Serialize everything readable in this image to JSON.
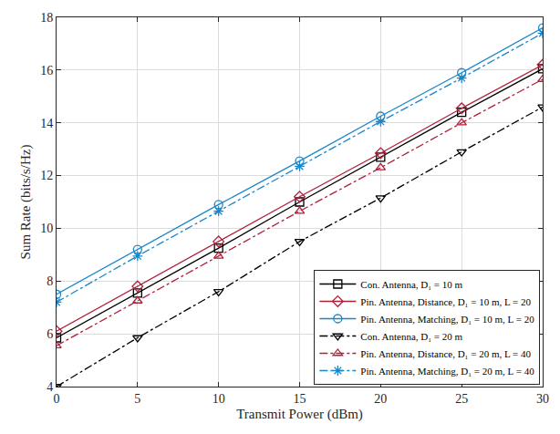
{
  "chart_data": {
    "type": "line",
    "x_label": "Transmit Power (dBm)",
    "y_label": "Sum Rate (bits/s/Hz)",
    "x": [
      0,
      5,
      10,
      15,
      20,
      25,
      30
    ],
    "xlim": [
      0,
      30
    ],
    "xticks": [
      0,
      5,
      10,
      15,
      20,
      25,
      30
    ],
    "ylim": [
      4,
      18
    ],
    "yticks": [
      4,
      6,
      8,
      10,
      12,
      14,
      16,
      18
    ],
    "grid": true,
    "legend": "bottom-right",
    "series": [
      {
        "name": "Con. Antenna, D₁ = 10 m",
        "color": "#000000",
        "marker": "square-open",
        "line_style": "solid",
        "values": [
          5.85,
          7.55,
          9.25,
          11.0,
          12.7,
          14.4,
          16.05
        ]
      },
      {
        "name": "Pin. Antenna, Distance, D₁ = 10 m, L = 20",
        "color": "#b0203a",
        "marker": "diamond-open",
        "line_style": "solid",
        "values": [
          6.1,
          7.8,
          9.5,
          11.2,
          12.85,
          14.55,
          16.2
        ]
      },
      {
        "name": "Pin. Antenna, Matching, D₁ = 10 m, L = 20",
        "color": "#1a86c8",
        "marker": "circle-open",
        "line_style": "solid",
        "values": [
          7.5,
          9.2,
          10.9,
          12.55,
          14.25,
          15.9,
          17.6
        ]
      },
      {
        "name": "Con. Antenna, D₁ = 20 m",
        "color": "#000000",
        "marker": "triangle-down-open",
        "line_style": "dashdot",
        "values": [
          4.0,
          5.85,
          7.6,
          9.5,
          11.15,
          12.9,
          14.6
        ]
      },
      {
        "name": "Pin. Antenna, Distance, D₁ = 20 m, L = 40",
        "color": "#b0203a",
        "marker": "triangle-up-open",
        "line_style": "dashdot",
        "values": [
          5.55,
          7.25,
          8.95,
          10.65,
          12.3,
          14.0,
          15.65
        ]
      },
      {
        "name": "Pin. Antenna, Matching, D₁ = 20 m, L = 40",
        "color": "#1a86c8",
        "marker": "asterisk-open",
        "line_style": "dashdot",
        "values": [
          7.2,
          8.95,
          10.65,
          12.35,
          14.05,
          15.7,
          17.4
        ]
      }
    ]
  }
}
